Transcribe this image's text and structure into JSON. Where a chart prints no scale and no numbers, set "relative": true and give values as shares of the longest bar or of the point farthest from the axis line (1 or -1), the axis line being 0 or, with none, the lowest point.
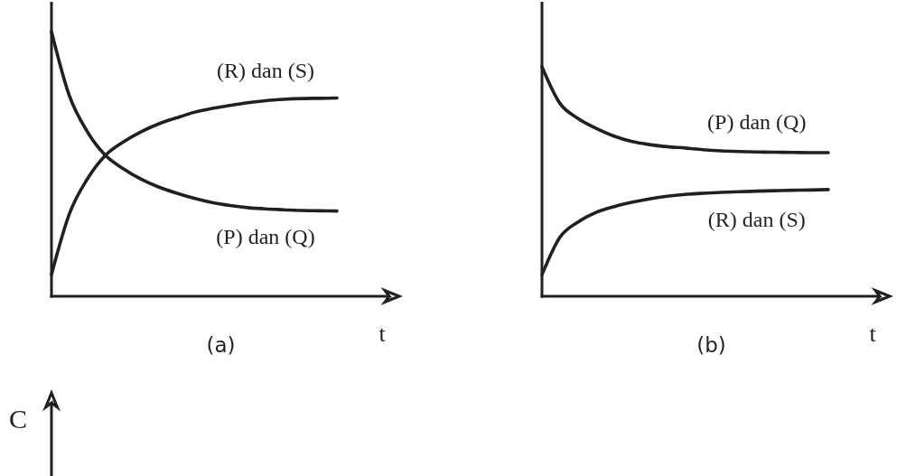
{
  "chart_data": [
    {
      "type": "line",
      "title": "(a)",
      "xlabel": "t",
      "relative": true,
      "line_style": "solid",
      "categories": [
        null,
        null,
        null,
        null,
        null,
        null,
        null,
        null,
        null,
        null,
        null,
        null,
        null,
        null,
        null,
        null,
        null
      ],
      "series": [
        {
          "name": "(P) dan (Q)",
          "color": "#231f20",
          "values": [
            1.0,
            0.758,
            0.623,
            0.534,
            0.483,
            0.443,
            0.413,
            0.39,
            0.37,
            0.354,
            0.343,
            0.335,
            0.33,
            0.327,
            0.324,
            0.323,
            0.322
          ]
        },
        {
          "name": "(R) dan (S)",
          "color": "#231f20",
          "values": [
            0.082,
            0.311,
            0.442,
            0.531,
            0.582,
            0.621,
            0.651,
            0.674,
            0.695,
            0.71,
            0.721,
            0.731,
            0.739,
            0.744,
            0.747,
            0.748,
            0.749
          ]
        }
      ]
    },
    {
      "type": "line",
      "title": "(b)",
      "xlabel": "t",
      "relative": true,
      "line_style": "solid",
      "categories": [
        null,
        null,
        null,
        null,
        null,
        null,
        null,
        null,
        null,
        null,
        null,
        null,
        null,
        null,
        null,
        null,
        null
      ],
      "series": [
        {
          "name": "(P) dan (Q)",
          "color": "#231f20",
          "values": [
            1.0,
            0.841,
            0.776,
            0.733,
            0.699,
            0.675,
            0.661,
            0.652,
            0.646,
            0.639,
            0.634,
            0.631,
            0.629,
            0.628,
            0.627,
            0.626,
            0.626
          ]
        },
        {
          "name": "(R) dan (S)",
          "color": "#231f20",
          "values": [
            0.094,
            0.257,
            0.323,
            0.365,
            0.39,
            0.409,
            0.424,
            0.436,
            0.444,
            0.449,
            0.453,
            0.456,
            0.458,
            0.46,
            0.462,
            0.463,
            0.465
          ]
        }
      ]
    },
    {
      "type": "other",
      "ylabel": "C"
    }
  ]
}
